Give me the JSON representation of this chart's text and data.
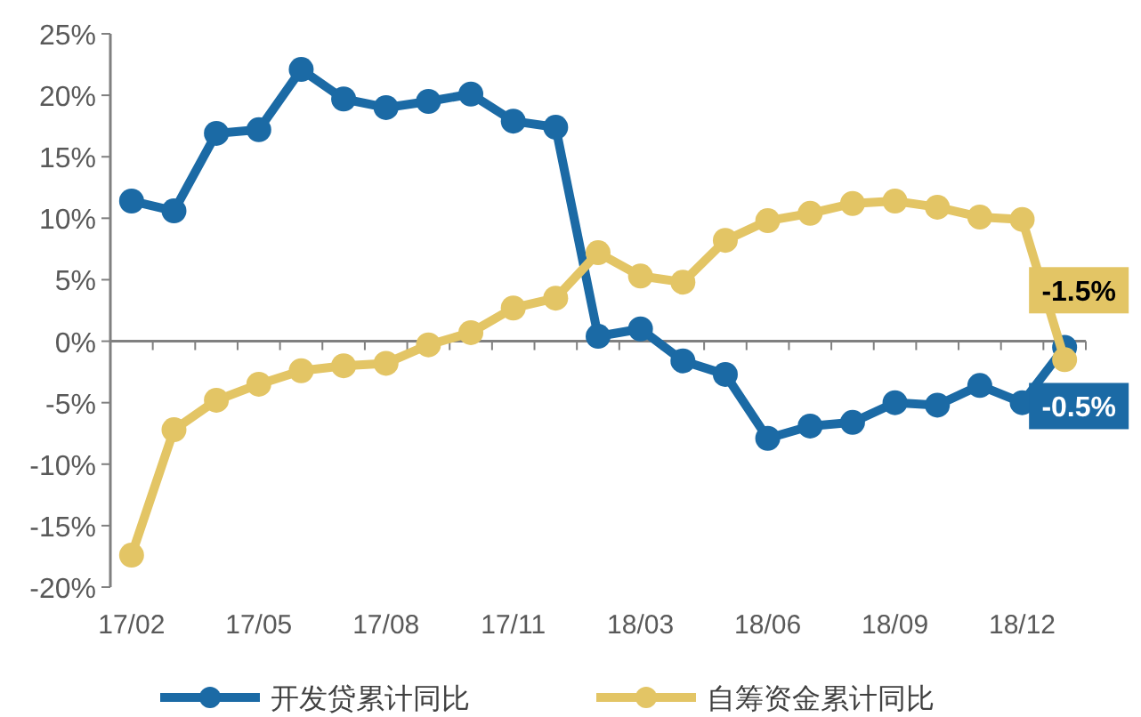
{
  "chart_data": {
    "type": "line",
    "categories": [
      "17/02",
      null,
      null,
      "17/05",
      null,
      null,
      "17/08",
      null,
      null,
      "17/11",
      null,
      null,
      "18/03",
      null,
      null,
      "18/06",
      null,
      null,
      "18/09",
      null,
      null,
      "18/12",
      null
    ],
    "series": [
      {
        "name": "开发贷累计同比",
        "color": "#1b6aa5",
        "values": [
          11.4,
          10.6,
          16.9,
          17.2,
          22.1,
          19.7,
          19.0,
          19.5,
          20.1,
          17.9,
          17.4,
          0.4,
          1.0,
          -1.6,
          -2.7,
          -7.9,
          -6.9,
          -6.6,
          -5.0,
          -5.2,
          -3.6,
          -5.0,
          -0.5
        ],
        "value_labels": [
          null,
          null,
          null,
          null,
          null,
          null,
          null,
          null,
          null,
          null,
          null,
          null,
          null,
          null,
          null,
          null,
          null,
          null,
          null,
          null,
          null,
          null,
          "-0.5%"
        ]
      },
      {
        "name": "自筹资金累计同比",
        "color": "#e3c565",
        "values": [
          -17.4,
          -7.2,
          -4.8,
          -3.5,
          -2.4,
          -2.0,
          -1.8,
          -0.3,
          0.7,
          2.7,
          3.5,
          7.2,
          5.3,
          4.8,
          8.2,
          9.8,
          10.4,
          11.2,
          11.4,
          10.9,
          10.1,
          9.9,
          -1.5
        ],
        "value_labels": [
          null,
          null,
          null,
          null,
          null,
          null,
          null,
          null,
          null,
          null,
          null,
          null,
          null,
          null,
          null,
          null,
          null,
          null,
          null,
          null,
          null,
          null,
          "-1.5%"
        ]
      }
    ],
    "ylim": [
      -20,
      25
    ],
    "yticks": [
      {
        "value": -20,
        "label": "-20%"
      },
      {
        "value": -15,
        "label": "-15%"
      },
      {
        "value": -10,
        "label": "-10%"
      },
      {
        "value": -5,
        "label": "-5%"
      },
      {
        "value": 0,
        "label": "0%"
      },
      {
        "value": 5,
        "label": "5%"
      },
      {
        "value": 10,
        "label": "10%"
      },
      {
        "value": 15,
        "label": "15%"
      },
      {
        "value": 20,
        "label": "20%"
      },
      {
        "value": 25,
        "label": "25%"
      }
    ],
    "legend": "bottom",
    "marker": "circle",
    "line_style": "solid"
  }
}
